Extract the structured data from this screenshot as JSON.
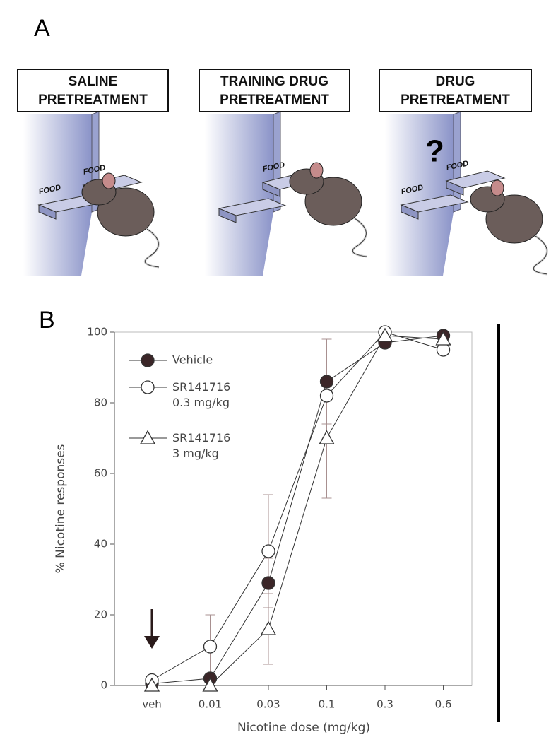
{
  "panel_a": {
    "label": "A",
    "boxes": [
      [
        "SALINE",
        "PRETREATMENT"
      ],
      [
        "TRAINING DRUG",
        "PRETREATMENT"
      ],
      [
        "DRUG",
        "PRETREATMENT"
      ]
    ],
    "food": "FOOD",
    "question": "?"
  },
  "panel_b": {
    "label": "B"
  },
  "chart_data": {
    "type": "line",
    "x_label": "Nicotine dose (mg/kg)",
    "y_label": "% Nicotine responses",
    "categories": [
      "veh",
      "0.01",
      "0.03",
      "0.1",
      "0.3",
      "0.6"
    ],
    "ylim": [
      0,
      100
    ],
    "yticks": [
      0,
      20,
      40,
      60,
      80,
      100
    ],
    "series": [
      {
        "name": "Vehicle",
        "marker": "circle",
        "color": "#333333",
        "fill": "#3b2628",
        "values": [
          0.5,
          2,
          29,
          86,
          97,
          99
        ],
        "errors": [
          null,
          null,
          7,
          12,
          null,
          null
        ]
      },
      {
        "name": "SR141716 0.3 mg/kg",
        "marker": "circle",
        "color": "#333333",
        "fill": "#ffffff",
        "values": [
          1.5,
          11,
          38,
          82,
          100,
          95
        ],
        "errors": [
          null,
          9,
          16,
          null,
          null,
          null
        ]
      },
      {
        "name": "SR141716 3 mg/kg",
        "marker": "triangle",
        "color": "#333333",
        "fill": "#ffffff",
        "values": [
          0,
          0,
          16,
          70,
          99,
          98
        ],
        "errors": [
          null,
          null,
          10,
          17,
          null,
          null
        ]
      }
    ]
  }
}
